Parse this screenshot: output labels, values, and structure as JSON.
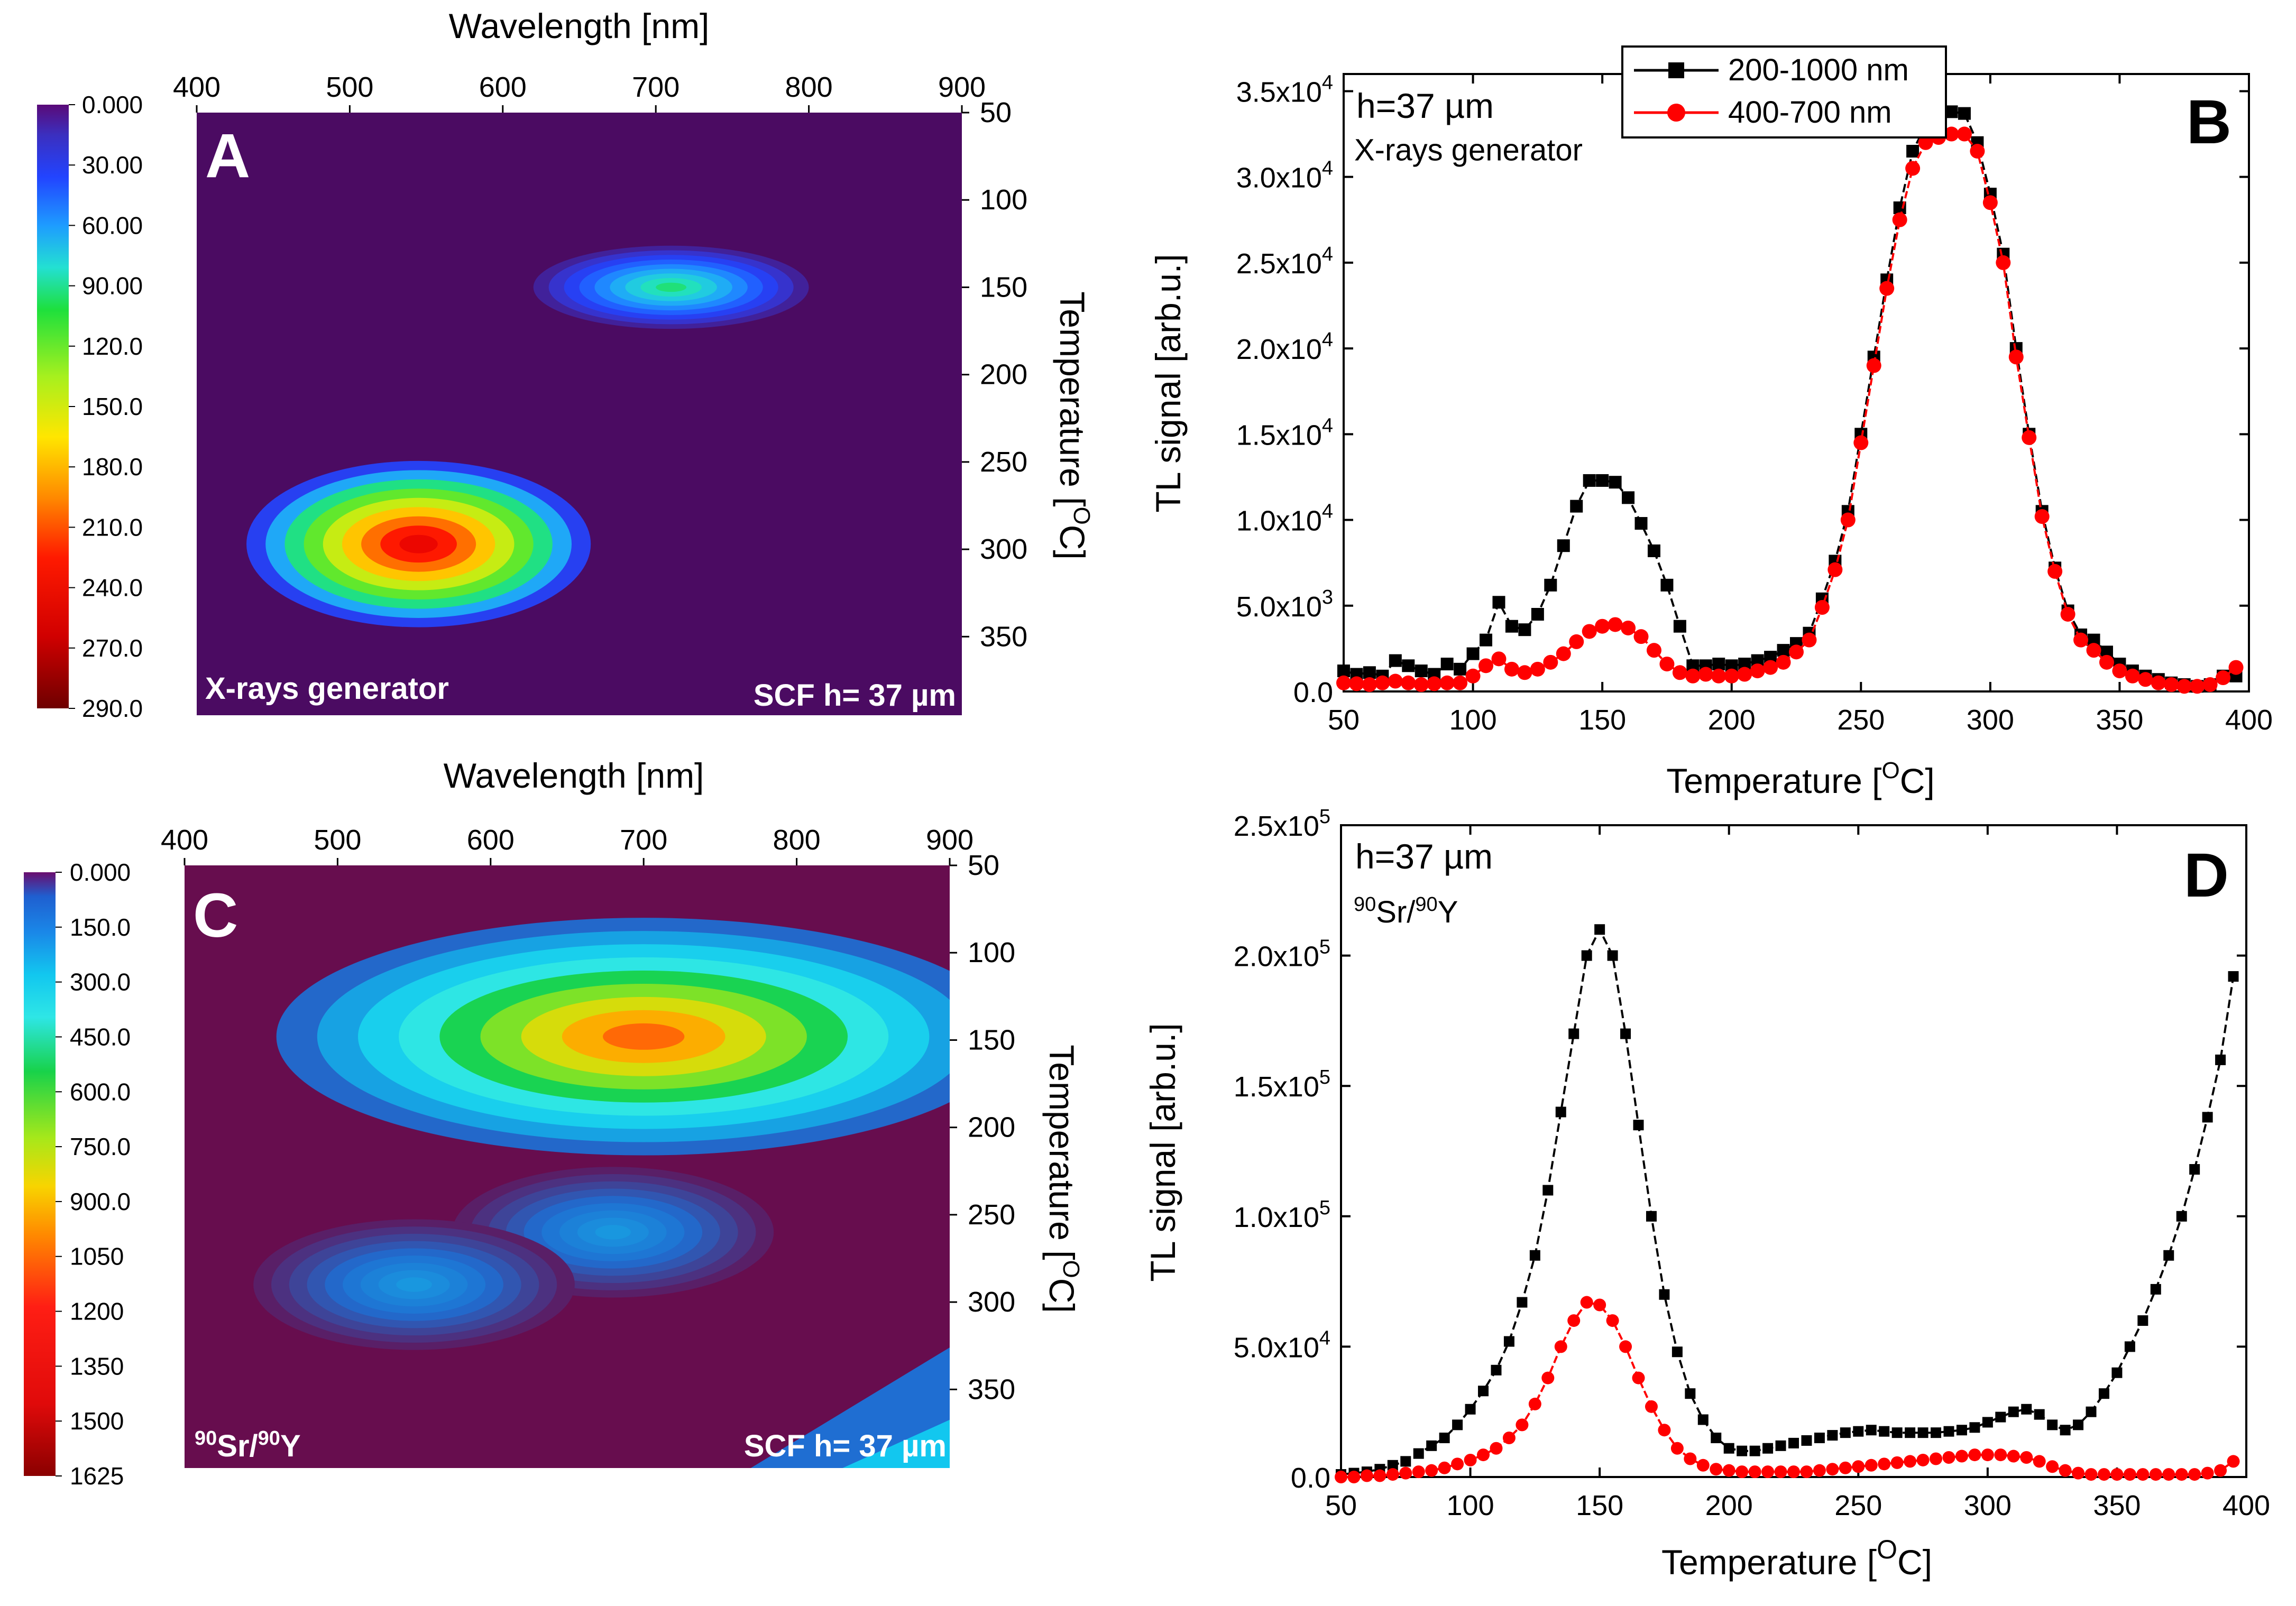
{
  "chart_data": [
    {
      "id": "A",
      "type": "heatmap",
      "panel_label": "A",
      "xlabel": "Wavelength [nm]",
      "ylabel": "Temperature [",
      "ylabel_unit": "C]",
      "ylabel_sup": "O",
      "x_ticks": [
        "400",
        "500",
        "600",
        "700",
        "800",
        "900"
      ],
      "y_ticks": [
        "50",
        "100",
        "150",
        "200",
        "250",
        "300",
        "350"
      ],
      "xlim": [
        400,
        900
      ],
      "ylim": [
        50,
        395
      ],
      "colorbar_ticks": [
        "0.000",
        "30.00",
        "60.00",
        "90.00",
        "120.0",
        "150.0",
        "180.0",
        "210.0",
        "240.0",
        "270.0",
        "290.0"
      ],
      "colorbar_range": [
        0,
        290
      ],
      "annotation_left": "X-rays generator",
      "annotation_right": "SCF h= 37 µm",
      "blobs": [
        {
          "center_wavelength": 545,
          "center_temp": 297,
          "peak": 280,
          "spread_wavelength": 75,
          "spread_temp": 28
        },
        {
          "center_wavelength": 710,
          "center_temp": 150,
          "peak": 95,
          "spread_wavelength": 60,
          "spread_temp": 14
        }
      ]
    },
    {
      "id": "B",
      "type": "line",
      "panel_label": "B",
      "xlabel": "Temperature [",
      "xlabel_sup": "O",
      "xlabel_unit": "C]",
      "ylabel": "TL signal [arb.u.]",
      "xlim": [
        50,
        400
      ],
      "ylim": [
        0,
        36000
      ],
      "x_ticks": [
        "50",
        "100",
        "150",
        "200",
        "250",
        "300",
        "350",
        "400"
      ],
      "y_ticks": [
        {
          "value": 0,
          "base": "0.0",
          "exp": ""
        },
        {
          "value": 5000,
          "base": "5.0x10",
          "exp": "3"
        },
        {
          "value": 10000,
          "base": "1.0x10",
          "exp": "4"
        },
        {
          "value": 15000,
          "base": "1.5x10",
          "exp": "4"
        },
        {
          "value": 20000,
          "base": "2.0x10",
          "exp": "4"
        },
        {
          "value": 25000,
          "base": "2.5x10",
          "exp": "4"
        },
        {
          "value": 30000,
          "base": "3.0x10",
          "exp": "4"
        },
        {
          "value": 35000,
          "base": "3.5x10",
          "exp": "4"
        }
      ],
      "annotation_main": "h=37 µm",
      "annotation_sub": "X-rays generator",
      "series": [
        {
          "name": "200-1000 nm",
          "color": "#000000",
          "marker": "square",
          "x": [
            50,
            55,
            60,
            65,
            70,
            75,
            80,
            85,
            90,
            95,
            100,
            105,
            110,
            115,
            120,
            125,
            130,
            135,
            140,
            145,
            150,
            155,
            160,
            165,
            170,
            175,
            180,
            185,
            190,
            195,
            200,
            205,
            210,
            215,
            220,
            225,
            230,
            235,
            240,
            245,
            250,
            255,
            260,
            265,
            270,
            275,
            280,
            285,
            290,
            295,
            300,
            305,
            310,
            315,
            320,
            325,
            330,
            335,
            340,
            345,
            350,
            355,
            360,
            365,
            370,
            375,
            380,
            385,
            390,
            395
          ],
          "y": [
            1200,
            1000,
            1100,
            900,
            1800,
            1500,
            1200,
            1000,
            1600,
            1300,
            2200,
            3000,
            5200,
            3800,
            3600,
            4500,
            6200,
            8500,
            10800,
            12300,
            12300,
            12200,
            11300,
            9800,
            8200,
            6200,
            3800,
            1500,
            1500,
            1600,
            1500,
            1600,
            1800,
            2000,
            2400,
            2800,
            3400,
            5400,
            7600,
            10500,
            15000,
            19500,
            24000,
            28200,
            31500,
            33000,
            33500,
            33800,
            33700,
            32000,
            29000,
            25500,
            20000,
            15000,
            10500,
            7200,
            4700,
            3300,
            3000,
            2300,
            1600,
            1200,
            900,
            700,
            500,
            400,
            300,
            400,
            900,
            900
          ]
        },
        {
          "name": "400-700 nm",
          "color": "#ff0000",
          "marker": "circle",
          "x": [
            50,
            55,
            60,
            65,
            70,
            75,
            80,
            85,
            90,
            95,
            100,
            105,
            110,
            115,
            120,
            125,
            130,
            135,
            140,
            145,
            150,
            155,
            160,
            165,
            170,
            175,
            180,
            185,
            190,
            195,
            200,
            205,
            210,
            215,
            220,
            225,
            230,
            235,
            240,
            245,
            250,
            255,
            260,
            265,
            270,
            275,
            280,
            285,
            290,
            295,
            300,
            305,
            310,
            315,
            320,
            325,
            330,
            335,
            340,
            345,
            350,
            355,
            360,
            365,
            370,
            375,
            380,
            385,
            390,
            395
          ],
          "y": [
            500,
            450,
            400,
            500,
            600,
            500,
            400,
            450,
            500,
            500,
            900,
            1500,
            1900,
            1300,
            1100,
            1300,
            1700,
            2200,
            2900,
            3500,
            3800,
            3900,
            3700,
            3200,
            2400,
            1600,
            1100,
            900,
            1000,
            900,
            900,
            1000,
            1200,
            1400,
            1700,
            2300,
            3000,
            4900,
            7100,
            10000,
            14500,
            19000,
            23500,
            27500,
            30500,
            32000,
            32300,
            32500,
            32500,
            31500,
            28500,
            25000,
            19500,
            14800,
            10200,
            7000,
            4500,
            3000,
            2400,
            1700,
            1200,
            900,
            700,
            500,
            400,
            300,
            300,
            400,
            800,
            1400
          ]
        }
      ]
    },
    {
      "id": "C",
      "type": "heatmap",
      "panel_label": "C",
      "xlabel": "Wavelength [nm]",
      "ylabel": "Temperature [",
      "ylabel_unit": "C]",
      "ylabel_sup": "O",
      "x_ticks": [
        "400",
        "500",
        "600",
        "700",
        "800",
        "900"
      ],
      "y_ticks": [
        "50",
        "100",
        "150",
        "200",
        "250",
        "300",
        "350"
      ],
      "xlim": [
        400,
        900
      ],
      "ylim": [
        50,
        395
      ],
      "colorbar_ticks": [
        "0.000",
        "150.0",
        "300.0",
        "450.0",
        "600.0",
        "750.0",
        "900.0",
        "1050",
        "1200",
        "1350",
        "1500",
        "1625"
      ],
      "colorbar_range": [
        0,
        1625
      ],
      "annotation_left_sup": "90",
      "annotation_left_a": "Sr/",
      "annotation_left_b": "Y",
      "annotation_right": "SCF h= 37 µm",
      "blobs": [
        {
          "center_wavelength": 700,
          "center_temp": 148,
          "peak": 1100,
          "spread_wavelength": 160,
          "spread_temp": 40
        },
        {
          "center_wavelength": 680,
          "center_temp": 260,
          "peak": 220,
          "spread_wavelength": 70,
          "spread_temp": 22
        },
        {
          "center_wavelength": 550,
          "center_temp": 290,
          "peak": 220,
          "spread_wavelength": 70,
          "spread_temp": 22
        }
      ]
    },
    {
      "id": "D",
      "type": "line",
      "panel_label": "D",
      "xlabel": "Temperature [",
      "xlabel_sup": "O",
      "xlabel_unit": "C]",
      "ylabel": "TL signal [arb.u.]",
      "xlim": [
        50,
        400
      ],
      "ylim": [
        0,
        250000
      ],
      "x_ticks": [
        "50",
        "100",
        "150",
        "200",
        "250",
        "300",
        "350",
        "400"
      ],
      "y_ticks": [
        {
          "value": 0,
          "base": "0.0",
          "exp": ""
        },
        {
          "value": 50000,
          "base": "5.0x10",
          "exp": "4"
        },
        {
          "value": 100000,
          "base": "1.0x10",
          "exp": "5"
        },
        {
          "value": 150000,
          "base": "1.5x10",
          "exp": "5"
        },
        {
          "value": 200000,
          "base": "2.0x10",
          "exp": "5"
        },
        {
          "value": 250000,
          "base": "2.5x10",
          "exp": "5"
        }
      ],
      "annotation_main": "h=37 µm",
      "annotation_sub_sup": "90",
      "annotation_sub_a": "Sr/",
      "annotation_sub_b": "Y",
      "series": [
        {
          "name": "200-1000 nm",
          "color": "#000000",
          "marker": "square",
          "x": [
            50,
            55,
            60,
            65,
            70,
            75,
            80,
            85,
            90,
            95,
            100,
            105,
            110,
            115,
            120,
            125,
            130,
            135,
            140,
            145,
            150,
            155,
            160,
            165,
            170,
            175,
            180,
            185,
            190,
            195,
            200,
            205,
            210,
            215,
            220,
            225,
            230,
            235,
            240,
            245,
            250,
            255,
            260,
            265,
            270,
            275,
            280,
            285,
            290,
            295,
            300,
            305,
            310,
            315,
            320,
            325,
            330,
            335,
            340,
            345,
            350,
            355,
            360,
            365,
            370,
            375,
            380,
            385,
            390,
            395
          ],
          "y": [
            1000,
            1500,
            2000,
            3000,
            4500,
            6000,
            9000,
            12000,
            15000,
            20000,
            26000,
            33000,
            41000,
            52000,
            67000,
            85000,
            110000,
            140000,
            170000,
            200000,
            210000,
            200000,
            170000,
            135000,
            100000,
            70000,
            48000,
            32000,
            22000,
            15000,
            11000,
            10000,
            10000,
            11000,
            12000,
            13000,
            14000,
            15000,
            16000,
            17000,
            17500,
            18000,
            17500,
            17000,
            17000,
            17000,
            17000,
            17500,
            18000,
            19000,
            21000,
            23000,
            25000,
            26000,
            24000,
            20000,
            18000,
            20000,
            25000,
            32000,
            40000,
            50000,
            60000,
            72000,
            85000,
            100000,
            118000,
            138000,
            160000,
            192000
          ]
        },
        {
          "name": "400-700 nm",
          "color": "#ff0000",
          "marker": "circle",
          "x": [
            50,
            55,
            60,
            65,
            70,
            75,
            80,
            85,
            90,
            95,
            100,
            105,
            110,
            115,
            120,
            125,
            130,
            135,
            140,
            145,
            150,
            155,
            160,
            165,
            170,
            175,
            180,
            185,
            190,
            195,
            200,
            205,
            210,
            215,
            220,
            225,
            230,
            235,
            240,
            245,
            250,
            255,
            260,
            265,
            270,
            275,
            280,
            285,
            290,
            295,
            300,
            305,
            310,
            315,
            320,
            325,
            330,
            335,
            340,
            345,
            350,
            355,
            360,
            365,
            370,
            375,
            380,
            385,
            390,
            395
          ],
          "y": [
            0,
            0,
            500,
            500,
            1000,
            1500,
            2000,
            2500,
            3500,
            5000,
            6500,
            8500,
            11000,
            15000,
            20000,
            28000,
            38000,
            50000,
            60000,
            67000,
            66000,
            60000,
            50000,
            38000,
            27000,
            18000,
            11000,
            7000,
            4500,
            3000,
            2500,
            2000,
            2000,
            2000,
            2000,
            2000,
            2000,
            2500,
            3000,
            3500,
            4000,
            4500,
            5000,
            5500,
            6000,
            6500,
            7000,
            7500,
            8000,
            8500,
            8500,
            8500,
            8000,
            7500,
            6000,
            4000,
            2500,
            1500,
            1000,
            1000,
            1000,
            1000,
            1000,
            1000,
            1000,
            1000,
            1000,
            1500,
            2500,
            6000
          ]
        }
      ],
      "legend_entries_shown_in": "B"
    }
  ]
}
